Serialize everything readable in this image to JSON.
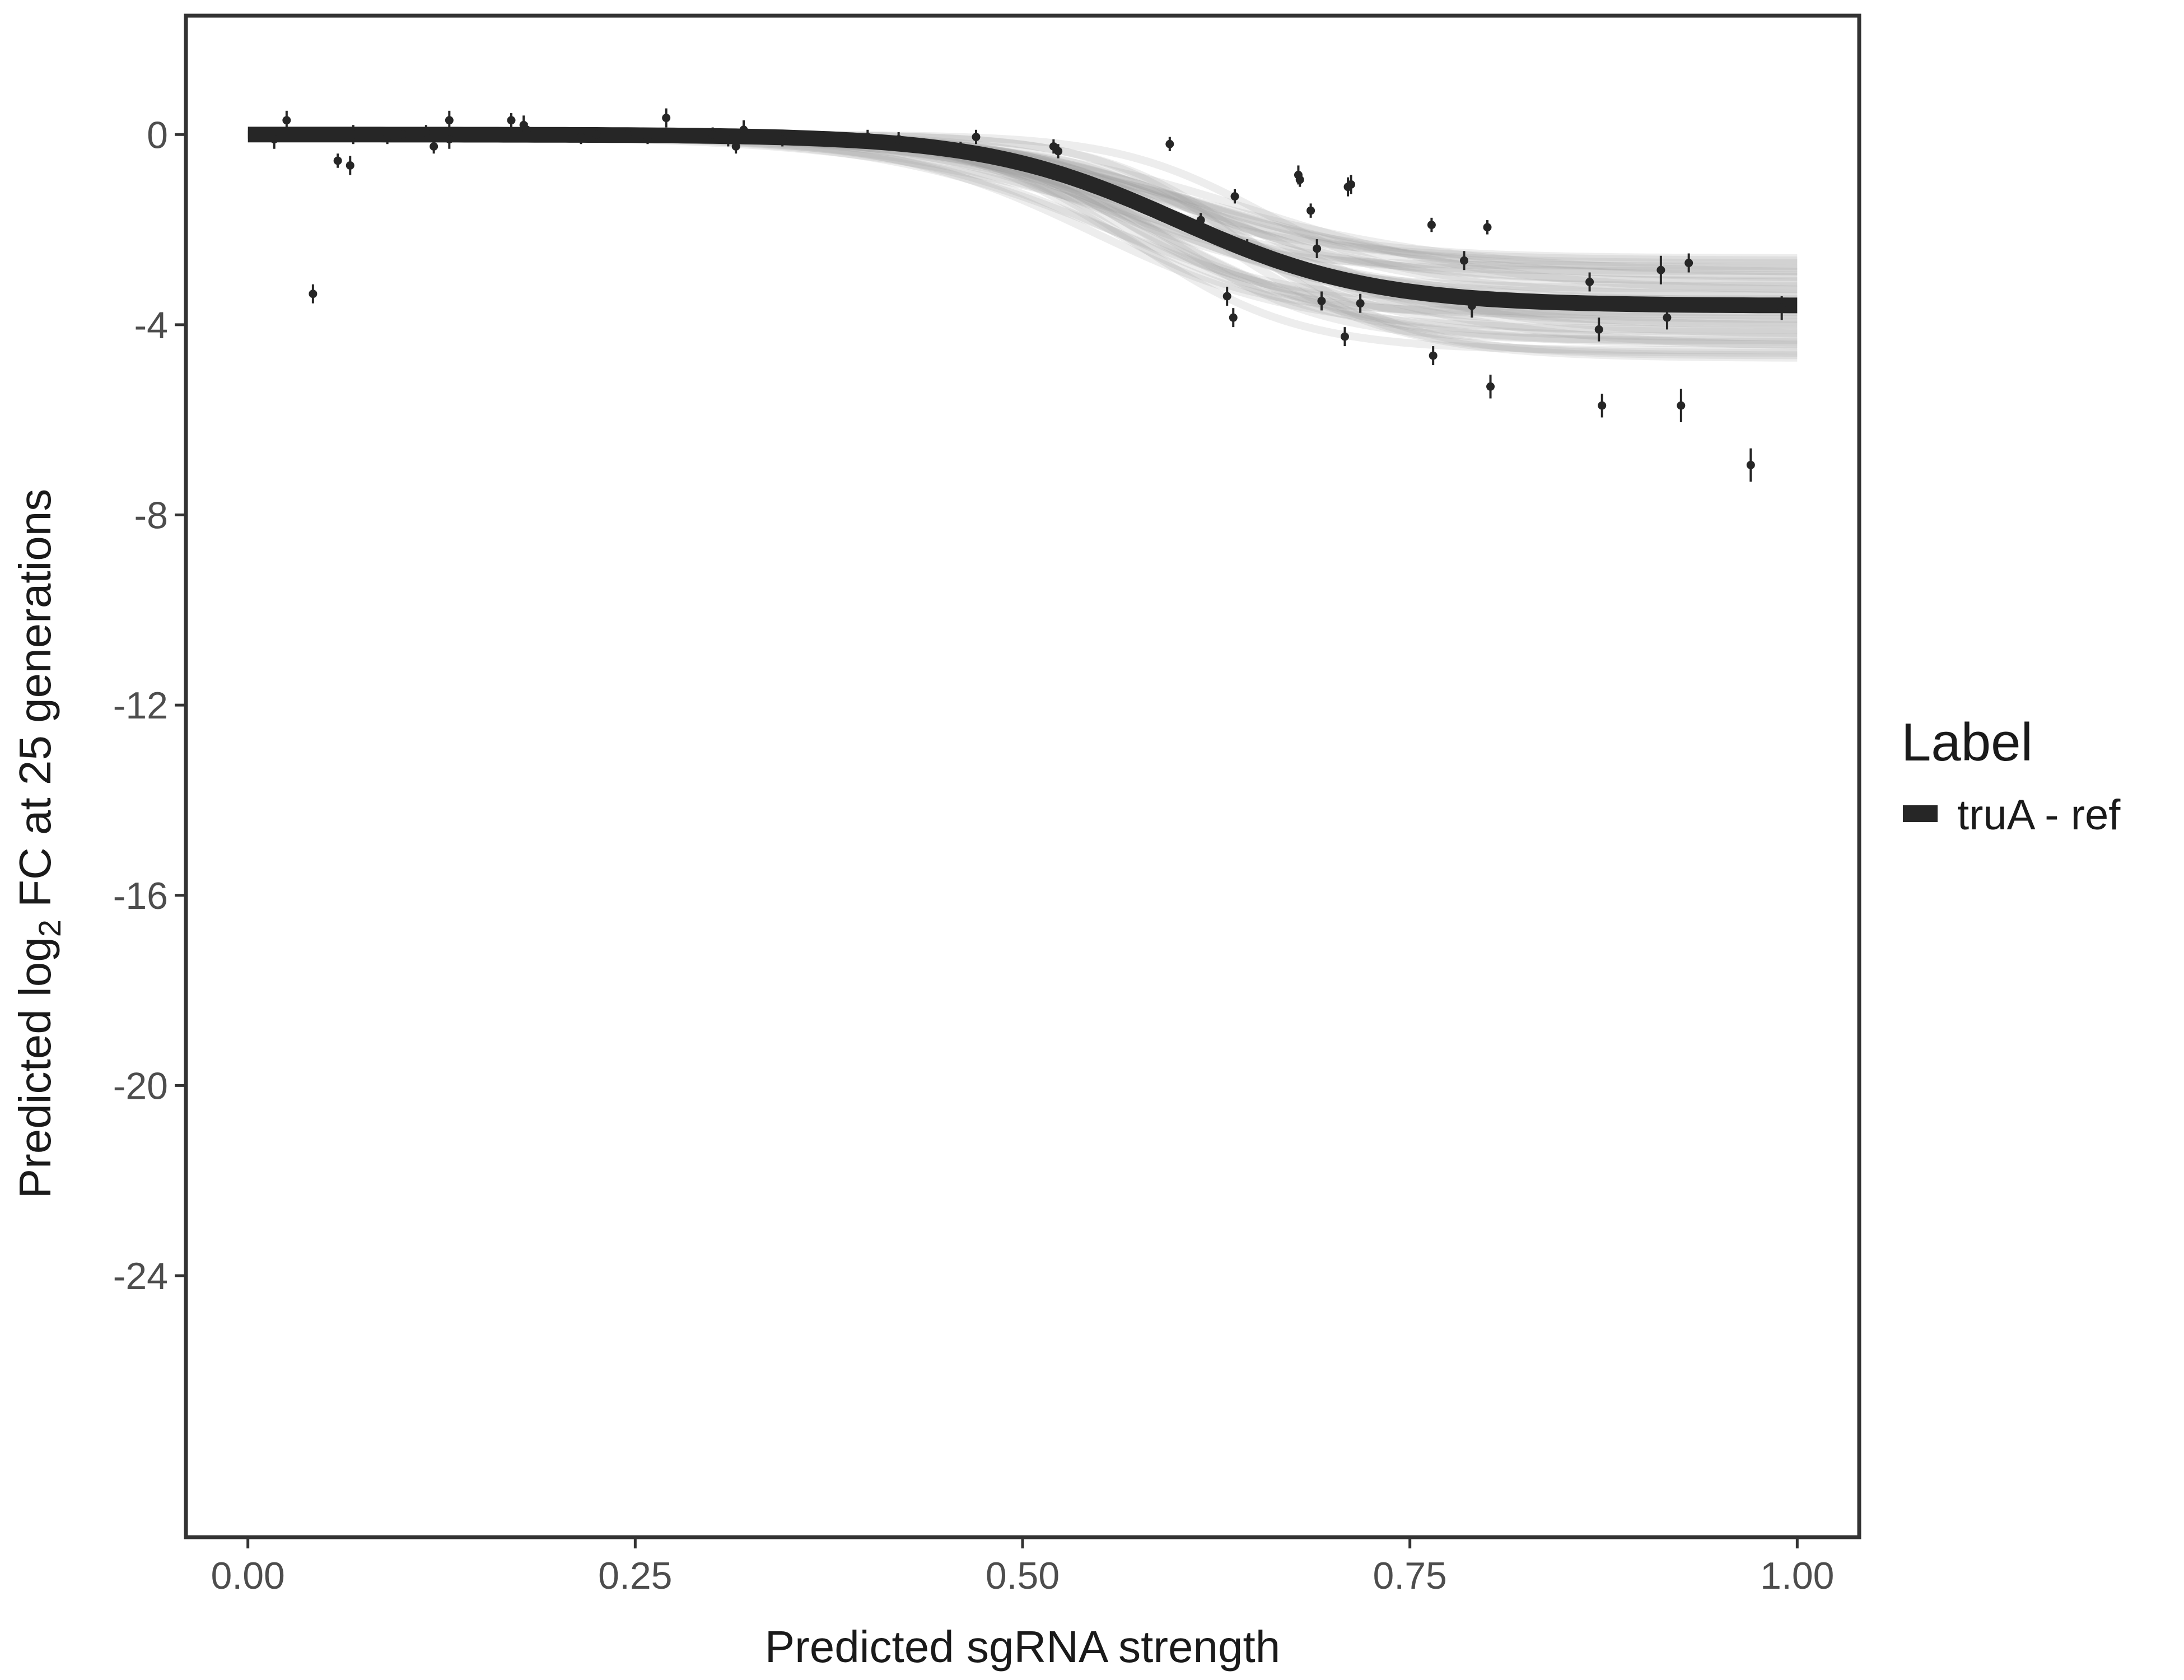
{
  "chart_data": {
    "type": "scatter",
    "title": "",
    "xlabel": "Predicted sgRNA strength",
    "ylabel": {
      "prefix": "Predicted  log",
      "subscript": "2",
      "suffix": " FC at 25 generations"
    },
    "xlim": [
      -0.04,
      1.04
    ],
    "ylim": [
      -29.5,
      2.5
    ],
    "x_ticks": [
      0,
      0.25,
      0.5,
      0.75,
      1.0
    ],
    "x_tick_labels": [
      "0.00",
      "0.25",
      "0.50",
      "0.75",
      "1.00"
    ],
    "y_ticks": [
      0,
      -4,
      -8,
      -12,
      -16,
      -20,
      -24
    ],
    "y_tick_labels": [
      "0",
      "-4",
      "-8",
      "-12",
      "-16",
      "-20",
      "-24"
    ],
    "grid": false,
    "legend": {
      "position": "right",
      "title": "Label",
      "entries": [
        {
          "label": "truA - ref",
          "color": "#262626"
        }
      ]
    },
    "fit_curve": {
      "name": "truA - ref",
      "model": "logistic",
      "upper": 0,
      "lower": -3.6,
      "midpoint": 0.6,
      "slope": 16,
      "x_range": [
        0,
        1
      ],
      "color": "#262626"
    },
    "posterior_band": {
      "color": "#9a9a9a",
      "lower_bound_range": [
        -2.6,
        -4.7
      ],
      "draws": 40
    },
    "points": [
      {
        "x": 0.017,
        "y": -0.1,
        "err": 0.2
      },
      {
        "x": 0.025,
        "y": 0.3,
        "err": 0.2
      },
      {
        "x": 0.042,
        "y": -3.35,
        "err": 0.2
      },
      {
        "x": 0.058,
        "y": -0.55,
        "err": 0.15
      },
      {
        "x": 0.066,
        "y": -0.65,
        "err": 0.2
      },
      {
        "x": 0.068,
        "y": 0.0,
        "err": 0.2
      },
      {
        "x": 0.09,
        "y": -0.05,
        "err": 0.15
      },
      {
        "x": 0.1,
        "y": 0.0,
        "err": 0.15
      },
      {
        "x": 0.115,
        "y": 0.05,
        "err": 0.15
      },
      {
        "x": 0.12,
        "y": -0.25,
        "err": 0.15
      },
      {
        "x": 0.13,
        "y": 0.3,
        "err": 0.2
      },
      {
        "x": 0.13,
        "y": -0.1,
        "err": 0.2
      },
      {
        "x": 0.17,
        "y": 0.3,
        "err": 0.15
      },
      {
        "x": 0.178,
        "y": 0.2,
        "err": 0.2
      },
      {
        "x": 0.18,
        "y": 0.1,
        "err": 0.15
      },
      {
        "x": 0.215,
        "y": -0.05,
        "err": 0.15
      },
      {
        "x": 0.225,
        "y": 0.0,
        "err": 0.15
      },
      {
        "x": 0.245,
        "y": 0.0,
        "err": 0.15
      },
      {
        "x": 0.258,
        "y": -0.05,
        "err": 0.15
      },
      {
        "x": 0.27,
        "y": 0.35,
        "err": 0.2
      },
      {
        "x": 0.3,
        "y": 0.0,
        "err": 0.15
      },
      {
        "x": 0.31,
        "y": -0.1,
        "err": 0.15
      },
      {
        "x": 0.315,
        "y": -0.25,
        "err": 0.15
      },
      {
        "x": 0.32,
        "y": 0.1,
        "err": 0.2
      },
      {
        "x": 0.345,
        "y": -0.1,
        "err": 0.15
      },
      {
        "x": 0.4,
        "y": -0.05,
        "err": 0.15
      },
      {
        "x": 0.42,
        "y": -0.1,
        "err": 0.15
      },
      {
        "x": 0.45,
        "y": -0.3,
        "err": 0.15
      },
      {
        "x": 0.46,
        "y": -0.3,
        "err": 0.15
      },
      {
        "x": 0.47,
        "y": -0.05,
        "err": 0.15
      },
      {
        "x": 0.52,
        "y": -0.25,
        "err": 0.15
      },
      {
        "x": 0.523,
        "y": -0.35,
        "err": 0.15
      },
      {
        "x": 0.595,
        "y": -0.2,
        "err": 0.15
      },
      {
        "x": 0.615,
        "y": -1.8,
        "err": 0.15
      },
      {
        "x": 0.632,
        "y": -3.4,
        "err": 0.2
      },
      {
        "x": 0.636,
        "y": -3.85,
        "err": 0.2
      },
      {
        "x": 0.637,
        "y": -1.3,
        "err": 0.15
      },
      {
        "x": 0.645,
        "y": -2.35,
        "err": 0.15
      },
      {
        "x": 0.678,
        "y": -0.85,
        "err": 0.2
      },
      {
        "x": 0.679,
        "y": -0.95,
        "err": 0.15
      },
      {
        "x": 0.686,
        "y": -1.6,
        "err": 0.15
      },
      {
        "x": 0.69,
        "y": -2.4,
        "err": 0.2
      },
      {
        "x": 0.693,
        "y": -3.5,
        "err": 0.2
      },
      {
        "x": 0.708,
        "y": -4.25,
        "err": 0.2
      },
      {
        "x": 0.71,
        "y": -1.1,
        "err": 0.2
      },
      {
        "x": 0.712,
        "y": -1.05,
        "err": 0.2
      },
      {
        "x": 0.718,
        "y": -3.55,
        "err": 0.2
      },
      {
        "x": 0.764,
        "y": -1.9,
        "err": 0.15
      },
      {
        "x": 0.765,
        "y": -4.65,
        "err": 0.2
      },
      {
        "x": 0.785,
        "y": -2.65,
        "err": 0.2
      },
      {
        "x": 0.79,
        "y": -3.6,
        "err": 0.25
      },
      {
        "x": 0.8,
        "y": -1.95,
        "err": 0.15
      },
      {
        "x": 0.802,
        "y": -5.3,
        "err": 0.25
      },
      {
        "x": 0.866,
        "y": -3.1,
        "err": 0.2
      },
      {
        "x": 0.872,
        "y": -4.1,
        "err": 0.25
      },
      {
        "x": 0.874,
        "y": -5.7,
        "err": 0.25
      },
      {
        "x": 0.912,
        "y": -2.85,
        "err": 0.3
      },
      {
        "x": 0.916,
        "y": -3.85,
        "err": 0.25
      },
      {
        "x": 0.925,
        "y": -5.7,
        "err": 0.35
      },
      {
        "x": 0.93,
        "y": -2.7,
        "err": 0.2
      },
      {
        "x": 0.97,
        "y": -6.95,
        "err": 0.35
      },
      {
        "x": 0.99,
        "y": -3.65,
        "err": 0.25
      }
    ]
  }
}
